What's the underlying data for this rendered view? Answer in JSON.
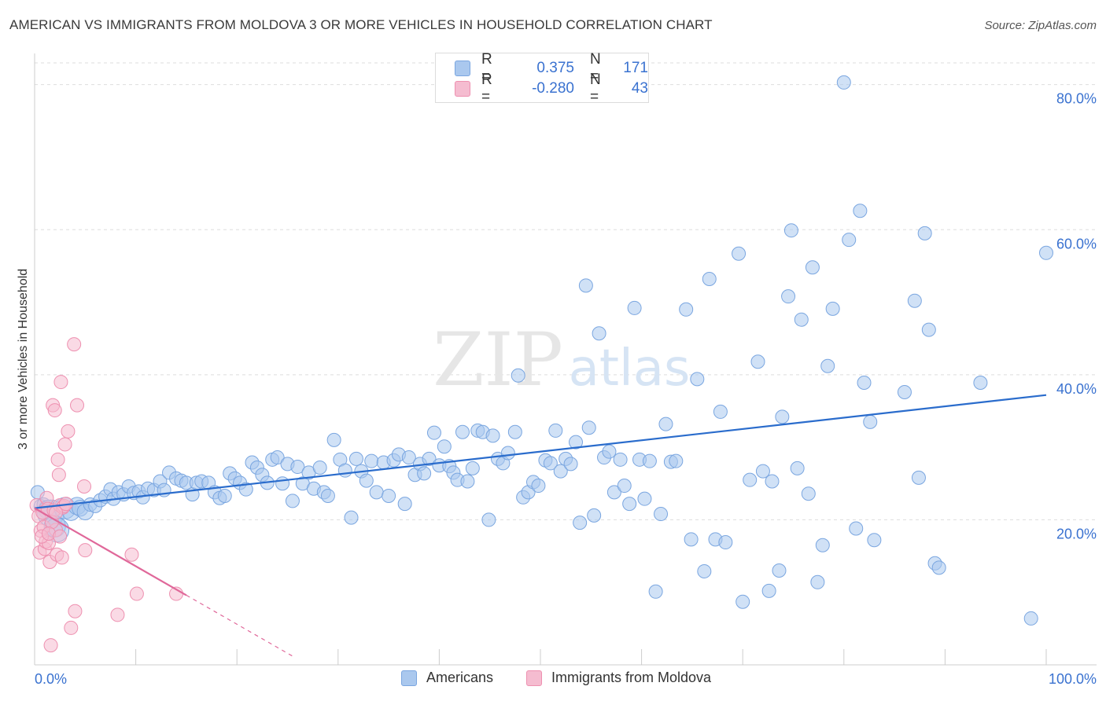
{
  "header": {
    "title": "AMERICAN VS IMMIGRANTS FROM MOLDOVA 3 OR MORE VEHICLES IN HOUSEHOLD CORRELATION CHART",
    "source": "Source: ZipAtlas.com"
  },
  "watermark": {
    "zip": "ZIP",
    "atlas": "atlas"
  },
  "legend": {
    "americans": {
      "r_label": "R =",
      "r_value": "0.375",
      "n_label": "N =",
      "n_value": "171"
    },
    "moldova": {
      "r_label": "R =",
      "r_value": "-0.280",
      "n_label": "N =",
      "n_value": "43"
    }
  },
  "bottom_legend": {
    "americans": "Americans",
    "moldova": "Immigrants from Moldova"
  },
  "colors": {
    "blue_fill": "#aac8ee",
    "blue_stroke": "#7aa6e0",
    "blue_line": "#2a6ccc",
    "pink_fill": "#f5bcd0",
    "pink_stroke": "#ee90b0",
    "pink_line": "#e0689a",
    "tick_text": "#3a72d0",
    "grid": "#dddddd"
  },
  "chart_data": {
    "type": "scatter",
    "title": "AMERICAN VS IMMIGRANTS FROM MOLDOVA 3 OR MORE VEHICLES IN HOUSEHOLD CORRELATION CHART",
    "xlabel": "",
    "ylabel": "3 or more Vehicles in Household",
    "xlim": [
      0,
      100
    ],
    "ylim": [
      0,
      83
    ],
    "x_tick_labels": [
      "0.0%",
      "100.0%"
    ],
    "y_ticks": [
      20,
      40,
      60,
      80
    ],
    "y_tick_labels": [
      "20.0%",
      "40.0%",
      "60.0%",
      "80.0%"
    ],
    "series": [
      {
        "name": "Americans",
        "trend": {
          "x": [
            0,
            100
          ],
          "y": [
            21.6,
            37.2
          ],
          "dashed_from": null
        },
        "points": [
          [
            0.3,
            23.8,
            1
          ],
          [
            0.6,
            21.9,
            1
          ],
          [
            0.9,
            22.1,
            1
          ],
          [
            1.3,
            21.4,
            1.4
          ],
          [
            1.6,
            20.9,
            2
          ],
          [
            2.0,
            19.1,
            1.6
          ],
          [
            2.2,
            18.6,
            1.8
          ],
          [
            3.0,
            21.6,
            1.6
          ],
          [
            3.6,
            21.1,
            1.3
          ],
          [
            4.2,
            21.9,
            1.3
          ],
          [
            4.5,
            21.6,
            1.2
          ],
          [
            5.0,
            21.1,
            1.2
          ],
          [
            5.5,
            22.1,
            1
          ],
          [
            6.0,
            21.9,
            1
          ],
          [
            6.5,
            22.7,
            1
          ],
          [
            7.0,
            23.2,
            1
          ],
          [
            7.5,
            24.2,
            1
          ],
          [
            7.8,
            22.9,
            1
          ],
          [
            8.3,
            23.8,
            1
          ],
          [
            8.8,
            23.5,
            1
          ],
          [
            9.3,
            24.6,
            1
          ],
          [
            9.8,
            23.7,
            1
          ],
          [
            10.3,
            23.9,
            1
          ],
          [
            10.7,
            23.1,
            1
          ],
          [
            11.2,
            24.3,
            1
          ],
          [
            11.8,
            24.1,
            1
          ],
          [
            12.4,
            25.3,
            1
          ],
          [
            12.8,
            24.1,
            1
          ],
          [
            13.3,
            26.5,
            1
          ],
          [
            14.0,
            25.7,
            1
          ],
          [
            14.5,
            25.4,
            1
          ],
          [
            15.0,
            25.1,
            1
          ],
          [
            15.6,
            23.5,
            1
          ],
          [
            16.0,
            25.1,
            1
          ],
          [
            16.5,
            25.3,
            1
          ],
          [
            17.2,
            25.1,
            1
          ],
          [
            17.8,
            23.8,
            1
          ],
          [
            18.3,
            23.0,
            1
          ],
          [
            18.8,
            23.3,
            1
          ],
          [
            19.3,
            26.4,
            1
          ],
          [
            19.8,
            25.7,
            1
          ],
          [
            20.3,
            25.1,
            1
          ],
          [
            20.9,
            24.2,
            1
          ],
          [
            21.5,
            27.9,
            1
          ],
          [
            22.0,
            27.2,
            1
          ],
          [
            22.5,
            26.2,
            1
          ],
          [
            23.0,
            25.1,
            1
          ],
          [
            23.5,
            28.3,
            1
          ],
          [
            24.0,
            28.6,
            1
          ],
          [
            24.5,
            25.0,
            1
          ],
          [
            25.0,
            27.7,
            1
          ],
          [
            25.5,
            22.6,
            1
          ],
          [
            26.0,
            27.3,
            1
          ],
          [
            26.5,
            25.0,
            1
          ],
          [
            27.1,
            26.5,
            1
          ],
          [
            27.6,
            24.3,
            1
          ],
          [
            28.2,
            27.2,
            1
          ],
          [
            28.6,
            23.8,
            1
          ],
          [
            29.0,
            23.3,
            1
          ],
          [
            29.6,
            31.0,
            1
          ],
          [
            30.2,
            28.3,
            1
          ],
          [
            30.7,
            26.8,
            1
          ],
          [
            31.3,
            20.3,
            1
          ],
          [
            31.8,
            28.4,
            1
          ],
          [
            32.3,
            26.7,
            1
          ],
          [
            32.8,
            25.4,
            1
          ],
          [
            33.3,
            28.1,
            1
          ],
          [
            33.8,
            23.8,
            1
          ],
          [
            34.5,
            27.9,
            1
          ],
          [
            35.0,
            23.3,
            1
          ],
          [
            35.5,
            28.2,
            1
          ],
          [
            36.0,
            29.0,
            1
          ],
          [
            36.6,
            22.2,
            1
          ],
          [
            37.0,
            28.6,
            1
          ],
          [
            37.6,
            26.2,
            1
          ],
          [
            38.1,
            27.7,
            1
          ],
          [
            38.5,
            26.4,
            1
          ],
          [
            39.0,
            28.4,
            1
          ],
          [
            39.5,
            32.0,
            1
          ],
          [
            40.0,
            27.5,
            1
          ],
          [
            40.5,
            30.1,
            1
          ],
          [
            41.0,
            27.4,
            1
          ],
          [
            41.4,
            26.5,
            1
          ],
          [
            41.8,
            25.5,
            1
          ],
          [
            42.3,
            32.1,
            1
          ],
          [
            42.8,
            25.3,
            1
          ],
          [
            43.3,
            27.1,
            1
          ],
          [
            43.8,
            32.3,
            1
          ],
          [
            44.3,
            32.1,
            1
          ],
          [
            44.9,
            20.0,
            1
          ],
          [
            45.3,
            31.6,
            1
          ],
          [
            45.8,
            28.4,
            1
          ],
          [
            46.3,
            27.8,
            1
          ],
          [
            46.8,
            29.2,
            1
          ],
          [
            47.5,
            32.1,
            1
          ],
          [
            47.8,
            39.9,
            1
          ],
          [
            48.3,
            23.1,
            1
          ],
          [
            48.8,
            23.8,
            1
          ],
          [
            49.3,
            25.2,
            1
          ],
          [
            49.8,
            24.7,
            1
          ],
          [
            50.5,
            28.2,
            1
          ],
          [
            51.0,
            27.8,
            1
          ],
          [
            51.5,
            32.3,
            1
          ],
          [
            52.0,
            26.7,
            1
          ],
          [
            52.5,
            28.4,
            1
          ],
          [
            53.0,
            27.7,
            1
          ],
          [
            53.5,
            30.7,
            1
          ],
          [
            53.9,
            19.6,
            1
          ],
          [
            54.5,
            52.3,
            1
          ],
          [
            54.8,
            32.7,
            1
          ],
          [
            55.3,
            20.6,
            1
          ],
          [
            55.8,
            45.7,
            1
          ],
          [
            56.3,
            28.6,
            1
          ],
          [
            56.8,
            29.4,
            1
          ],
          [
            57.3,
            23.8,
            1
          ],
          [
            57.9,
            28.3,
            1
          ],
          [
            58.3,
            24.7,
            1
          ],
          [
            58.8,
            22.2,
            1
          ],
          [
            59.3,
            49.2,
            1
          ],
          [
            59.8,
            28.3,
            1
          ],
          [
            60.3,
            22.9,
            1
          ],
          [
            60.8,
            28.1,
            1
          ],
          [
            61.4,
            10.1,
            1
          ],
          [
            61.9,
            20.8,
            1
          ],
          [
            62.4,
            33.2,
            1
          ],
          [
            62.9,
            28.0,
            1
          ],
          [
            63.4,
            28.1,
            1
          ],
          [
            64.4,
            49.0,
            1
          ],
          [
            64.9,
            17.3,
            1
          ],
          [
            65.5,
            39.4,
            1
          ],
          [
            66.2,
            12.9,
            1
          ],
          [
            66.7,
            53.2,
            1
          ],
          [
            67.3,
            17.3,
            1
          ],
          [
            67.8,
            34.9,
            1
          ],
          [
            68.3,
            16.9,
            1
          ],
          [
            69.6,
            56.7,
            1
          ],
          [
            70.0,
            8.7,
            1
          ],
          [
            70.7,
            25.5,
            1
          ],
          [
            71.5,
            41.8,
            1
          ],
          [
            72.0,
            26.7,
            1
          ],
          [
            72.6,
            10.2,
            1
          ],
          [
            72.9,
            25.3,
            1
          ],
          [
            73.6,
            13.0,
            1
          ],
          [
            73.9,
            34.2,
            1
          ],
          [
            74.5,
            50.8,
            1
          ],
          [
            74.8,
            59.9,
            1
          ],
          [
            75.4,
            27.1,
            1
          ],
          [
            75.8,
            47.6,
            1
          ],
          [
            76.5,
            23.6,
            1
          ],
          [
            76.9,
            54.8,
            1
          ],
          [
            77.4,
            11.4,
            1
          ],
          [
            77.9,
            16.5,
            1
          ],
          [
            78.4,
            41.2,
            1
          ],
          [
            78.9,
            49.1,
            1
          ],
          [
            80.0,
            80.3,
            1
          ],
          [
            80.5,
            58.6,
            1
          ],
          [
            81.2,
            18.8,
            1
          ],
          [
            81.6,
            62.6,
            1
          ],
          [
            82.0,
            38.9,
            1
          ],
          [
            82.6,
            33.5,
            1
          ],
          [
            83.0,
            17.2,
            1
          ],
          [
            86.0,
            37.6,
            1
          ],
          [
            87.0,
            50.2,
            1
          ],
          [
            87.4,
            25.8,
            1
          ],
          [
            88.0,
            59.5,
            1
          ],
          [
            88.4,
            46.2,
            1
          ],
          [
            89.0,
            14.0,
            1
          ],
          [
            89.4,
            13.4,
            1
          ],
          [
            93.5,
            38.9,
            1
          ],
          [
            98.5,
            6.4,
            1
          ],
          [
            100.0,
            56.8,
            1
          ]
        ]
      },
      {
        "name": "Immigrants from Moldova",
        "trend": {
          "x": [
            0,
            15
          ],
          "y": [
            21.6,
            9.6
          ],
          "dashed_to": [
            25.5,
            1.2
          ]
        },
        "points": [
          [
            0.2,
            22.0,
            1
          ],
          [
            0.4,
            20.5,
            1
          ],
          [
            0.5,
            15.5,
            1
          ],
          [
            0.6,
            18.5,
            1
          ],
          [
            0.8,
            21.0,
            1
          ],
          [
            0.9,
            19.0,
            1
          ],
          [
            1.0,
            16.0,
            1
          ],
          [
            1.1,
            17.0,
            1
          ],
          [
            1.2,
            23.0,
            1
          ],
          [
            1.3,
            21.5,
            1
          ],
          [
            1.4,
            16.8,
            1
          ],
          [
            1.5,
            14.2,
            1
          ],
          [
            1.6,
            2.7,
            1
          ],
          [
            1.8,
            35.8,
            1
          ],
          [
            1.9,
            21.3,
            1
          ],
          [
            2.0,
            35.1,
            1
          ],
          [
            2.1,
            18.6,
            1
          ],
          [
            2.2,
            15.2,
            1
          ],
          [
            2.3,
            28.3,
            1
          ],
          [
            2.4,
            26.2,
            1
          ],
          [
            2.5,
            22.0,
            1
          ],
          [
            2.6,
            39.0,
            1
          ],
          [
            2.7,
            14.8,
            1
          ],
          [
            2.8,
            21.7,
            1
          ],
          [
            2.9,
            21.9,
            1
          ],
          [
            3.0,
            30.4,
            1
          ],
          [
            3.1,
            22.2,
            1
          ],
          [
            3.3,
            32.2,
            1
          ],
          [
            3.6,
            5.1,
            1
          ],
          [
            3.9,
            44.2,
            1
          ],
          [
            4.0,
            7.4,
            1
          ],
          [
            4.2,
            35.8,
            1
          ],
          [
            4.9,
            24.6,
            1
          ],
          [
            5.0,
            15.8,
            1
          ],
          [
            8.2,
            6.9,
            1
          ],
          [
            9.6,
            15.2,
            1
          ],
          [
            10.1,
            9.8,
            1
          ],
          [
            14.0,
            9.8,
            1
          ],
          [
            0.7,
            17.7,
            1
          ],
          [
            1.7,
            19.7,
            1
          ],
          [
            2.1,
            21.0,
            1
          ],
          [
            1.4,
            18.1,
            1
          ],
          [
            2.5,
            17.7,
            1
          ]
        ]
      }
    ]
  }
}
